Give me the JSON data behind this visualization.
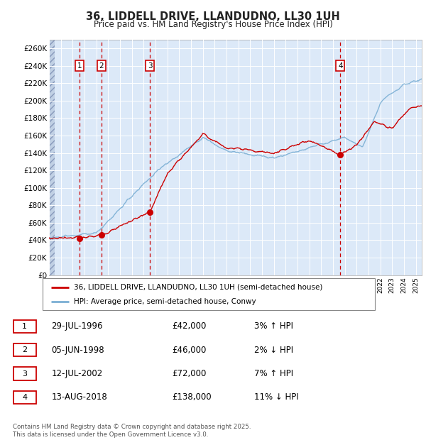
{
  "title_line1": "36, LIDDELL DRIVE, LLANDUDNO, LL30 1UH",
  "title_line2": "Price paid vs. HM Land Registry's House Price Index (HPI)",
  "ylim": [
    0,
    270000
  ],
  "yticks": [
    0,
    20000,
    40000,
    60000,
    80000,
    100000,
    120000,
    140000,
    160000,
    180000,
    200000,
    220000,
    240000,
    260000
  ],
  "ytick_labels": [
    "£0",
    "£20K",
    "£40K",
    "£60K",
    "£80K",
    "£100K",
    "£120K",
    "£140K",
    "£160K",
    "£180K",
    "£200K",
    "£220K",
    "£240K",
    "£260K"
  ],
  "plot_bg_color": "#dce9f8",
  "grid_color": "#ffffff",
  "red_line_color": "#cc0000",
  "blue_line_color": "#7bafd4",
  "sale_points": [
    {
      "year": 1996.57,
      "price": 42000,
      "label": "1"
    },
    {
      "year": 1998.43,
      "price": 46000,
      "label": "2"
    },
    {
      "year": 2002.53,
      "price": 72000,
      "label": "3"
    },
    {
      "year": 2018.62,
      "price": 138000,
      "label": "4"
    }
  ],
  "sale_labels_info": [
    {
      "num": "1",
      "date": "29-JUL-1996",
      "price": "£42,000",
      "pct": "3% ↑ HPI"
    },
    {
      "num": "2",
      "date": "05-JUN-1998",
      "price": "£46,000",
      "pct": "2% ↓ HPI"
    },
    {
      "num": "3",
      "date": "12-JUL-2002",
      "price": "£72,000",
      "pct": "7% ↑ HPI"
    },
    {
      "num": "4",
      "date": "13-AUG-2018",
      "price": "£138,000",
      "pct": "11% ↓ HPI"
    }
  ],
  "legend_line1": "36, LIDDELL DRIVE, LLANDUDNO, LL30 1UH (semi-detached house)",
  "legend_line2": "HPI: Average price, semi-detached house, Conwy",
  "footnote": "Contains HM Land Registry data © Crown copyright and database right 2025.\nThis data is licensed under the Open Government Licence v3.0."
}
